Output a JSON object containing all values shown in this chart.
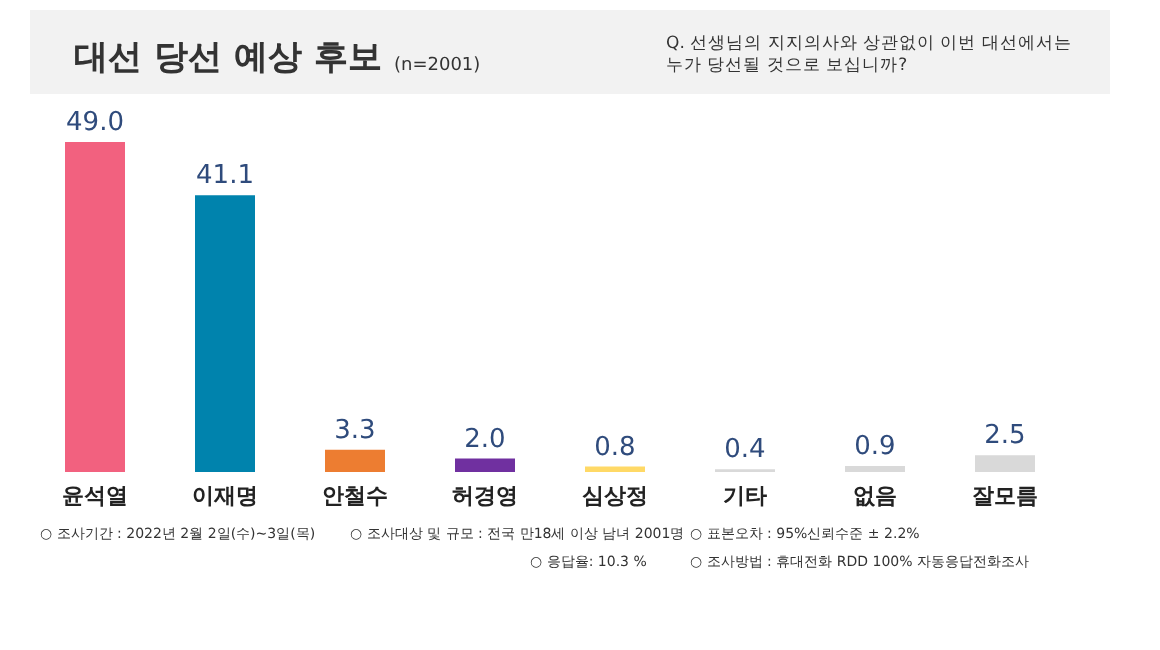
{
  "chart_data": {
    "type": "bar",
    "title": "대선 당선 예상 후보",
    "subtitle": "(n=2001)",
    "categories": [
      "윤석열",
      "이재명",
      "안철수",
      "허경영",
      "심상정",
      "기타",
      "없음",
      "잘모름"
    ],
    "values": [
      49.0,
      41.1,
      3.3,
      2.0,
      0.8,
      0.4,
      0.9,
      2.5
    ],
    "colors": [
      "#f2617f",
      "#0083ad",
      "#ed7d31",
      "#7030a0",
      "#ffd966",
      "#d9d9d9",
      "#d9d9d9",
      "#d9d9d9"
    ],
    "value_labels": [
      "49.0",
      "41.1",
      "3.3",
      "2.0",
      "0.8",
      "0.4",
      "0.9",
      "2.5"
    ],
    "tick_labels": "x",
    "annotations": [
      "Q. 선생님의 지지의사와 상관없이 이번 대선에서는 누가 당선될 것으로 보십니까?",
      "○ 조사기간 : 2022년 2월 2일(수)~3일(목)",
      "○ 조사대상 및 규모 : 전국 만18세 이상 남녀 2001명",
      "○ 표본오차 : 95%신뢰수준 ± 2.2%",
      "○ 응답율: 10.3 %",
      "○ 조사방법 : 휴대전화 RDD 100% 자동응답전화조사"
    ]
  }
}
